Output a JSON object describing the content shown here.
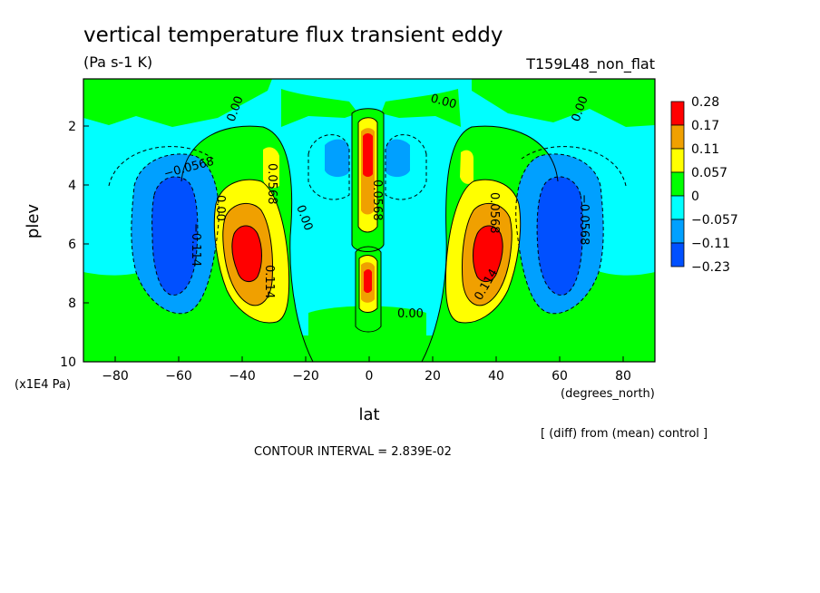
{
  "title": "vertical temperature flux transient eddy",
  "units": "(Pa s-1 K)",
  "run_label": "T159L48_non_flat",
  "y_unit": "(x1E4 Pa)",
  "x_unit": "(degrees_north)",
  "diff_note": "[ (diff) from (mean) control ]",
  "contour_interval": "CONTOUR INTERVAL = 2.839E-02",
  "colors": {
    "c_pos3": "#ff0000",
    "c_pos2": "#f0a000",
    "c_pos1": "#ffff00",
    "c_zero_pos": "#00ff00",
    "c_zero_neg": "#00ffff",
    "c_neg1": "#00a0ff",
    "c_neg2": "#0050ff"
  },
  "chart_data": {
    "type": "heatmap",
    "title": "vertical temperature flux transient eddy",
    "subtitle": "(Pa s-1 K)",
    "xlabel": "lat",
    "ylabel": "plev",
    "xlim": [
      -90,
      90
    ],
    "ylim": [
      10,
      0.4
    ],
    "x_ticks": [
      -80,
      -60,
      -40,
      -20,
      0,
      20,
      40,
      60,
      80
    ],
    "y_ticks": [
      2,
      4,
      6,
      8,
      10
    ],
    "legend": {
      "placement": "right",
      "labels": [
        "0.28",
        "0.17",
        "0.11",
        "0.057",
        "0",
        "−0.057",
        "−0.11",
        "−0.23"
      ],
      "colors": [
        "#ff0000",
        "#f0a000",
        "#ffff00",
        "#00ff00",
        "#00ffff",
        "#00a0ff",
        "#0050ff"
      ]
    },
    "contour_labels": [
      "0.00",
      "−0.0568",
      "0.0568",
      "0.114",
      "−0.114"
    ],
    "features": [
      {
        "lat": -38,
        "plev": 6.0,
        "sign": "positive",
        "peak": 0.28
      },
      {
        "lat": 38,
        "plev": 6.0,
        "sign": "positive",
        "peak": 0.28
      },
      {
        "lat": 0,
        "plev": 3.0,
        "sign": "positive",
        "peak": 0.28
      },
      {
        "lat": 0,
        "plev": 7.1,
        "sign": "positive",
        "peak": 0.28
      },
      {
        "lat": -60,
        "plev": 5.5,
        "sign": "negative",
        "peak": -0.23
      },
      {
        "lat": 60,
        "plev": 5.5,
        "sign": "negative",
        "peak": -0.23
      },
      {
        "lat": -10,
        "plev": 2.8,
        "sign": "negative",
        "peak": -0.11
      },
      {
        "lat": 10,
        "plev": 2.8,
        "sign": "negative",
        "peak": -0.11
      }
    ]
  }
}
